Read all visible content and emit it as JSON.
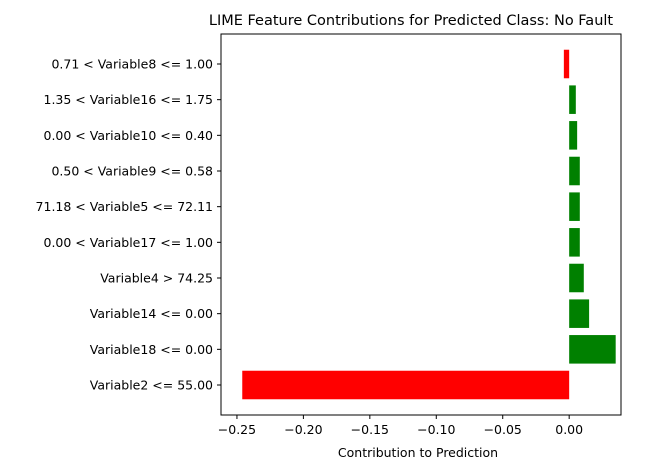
{
  "chart_data": {
    "type": "bar",
    "orientation": "horizontal",
    "title": "LIME Feature Contributions for Predicted Class: No Fault",
    "xlabel": "Contribution to Prediction",
    "ylabel": "",
    "xlim": [
      -0.262,
      0.039
    ],
    "xticks": [
      -0.25,
      -0.2,
      -0.15,
      -0.1,
      -0.05,
      0.0
    ],
    "xtick_labels": [
      "−0.25",
      "−0.20",
      "−0.15",
      "−0.10",
      "−0.05",
      "0.00"
    ],
    "categories": [
      "0.71 < Variable8 <= 1.00",
      "1.35 < Variable16 <= 1.75",
      "0.00 < Variable10 <= 0.40",
      "0.50 < Variable9 <= 0.58",
      "71.18 < Variable5 <= 72.11",
      "0.00 < Variable17 <= 1.00",
      "Variable4 > 74.25",
      "Variable14 <= 0.00",
      "Variable18 <= 0.00",
      "Variable2 <= 55.00"
    ],
    "values": [
      -0.004,
      0.005,
      0.006,
      0.008,
      0.008,
      0.008,
      0.011,
      0.015,
      0.035,
      -0.246
    ],
    "colors": {
      "positive": "#008000",
      "negative": "#ff0000"
    },
    "grid": false,
    "legend": "none"
  }
}
